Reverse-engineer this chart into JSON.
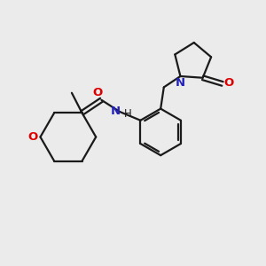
{
  "background_color": "#ebebeb",
  "bond_color": "#1a1a1a",
  "o_color": "#dd0000",
  "n_color": "#2222bb",
  "line_width": 1.6,
  "figsize": [
    3.0,
    3.0
  ],
  "dpi": 100,
  "xlim": [
    0,
    10
  ],
  "ylim": [
    0,
    10
  ],
  "font_size": 9.5
}
